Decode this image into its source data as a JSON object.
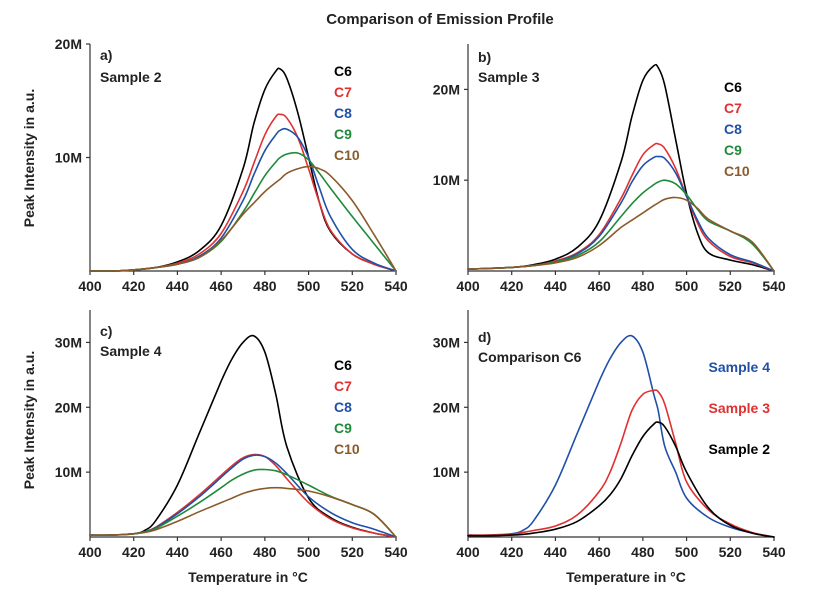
{
  "figure_title": "Comparison of Emission Profile",
  "chart_data": [
    {
      "type": "line",
      "panel": "a)",
      "subtitle": "Sample 2",
      "xlabel": "",
      "ylabel": "Peak Intensity in a.u.",
      "xlim": [
        400,
        540
      ],
      "ylim": [
        0,
        20000000
      ],
      "xticks": [
        "400",
        "420",
        "440",
        "460",
        "480",
        "500",
        "520",
        "540"
      ],
      "yticks": [
        {
          "value": 10000000,
          "label": "10M"
        },
        {
          "value": 20000000,
          "label": "20M"
        }
      ],
      "x": [
        400,
        410,
        420,
        430,
        440,
        450,
        460,
        470,
        475,
        480,
        485,
        487,
        490,
        495,
        500,
        505,
        510,
        520,
        530,
        540
      ],
      "series": [
        {
          "name": "C6",
          "color": "#000000",
          "values": [
            0,
            0,
            0.1,
            0.3,
            0.8,
            1.8,
            4,
            9,
            13,
            16,
            17.6,
            17.8,
            17,
            14,
            10,
            6,
            3.5,
            1.5,
            0.6,
            0
          ]
        },
        {
          "name": "C7",
          "color": "#e03030",
          "values": [
            0,
            0,
            0.1,
            0.3,
            0.7,
            1.5,
            3.3,
            7,
            9.5,
            12,
            13.6,
            13.8,
            13.5,
            11.8,
            9,
            6,
            3.6,
            1.5,
            0.6,
            0
          ]
        },
        {
          "name": "C8",
          "color": "#2050a8",
          "values": [
            0,
            0,
            0.1,
            0.3,
            0.6,
            1.3,
            2.9,
            6.2,
            8.5,
            10.6,
            12,
            12.4,
            12.5,
            11.8,
            10,
            7.3,
            4.8,
            1.9,
            0.7,
            0
          ]
        },
        {
          "name": "C9",
          "color": "#1f8a3a",
          "values": [
            0,
            0,
            0.1,
            0.3,
            0.6,
            1.2,
            2.6,
            5.2,
            6.8,
            8.4,
            9.6,
            10,
            10.3,
            10.4,
            9.8,
            8.6,
            7.3,
            4.8,
            2.4,
            0
          ]
        },
        {
          "name": "C10",
          "color": "#8b5a2b",
          "values": [
            0,
            0,
            0.1,
            0.3,
            0.6,
            1.2,
            2.7,
            5,
            6,
            7,
            7.8,
            8.1,
            8.6,
            9,
            9.2,
            9,
            8.4,
            6.2,
            3.2,
            0
          ]
        }
      ],
      "scale": 1000000
    },
    {
      "type": "line",
      "panel": "b)",
      "subtitle": "Sample 3",
      "xlabel": "",
      "ylabel": "",
      "xlim": [
        400,
        540
      ],
      "ylim": [
        0,
        25000000
      ],
      "xticks": [
        "400",
        "420",
        "440",
        "460",
        "480",
        "500",
        "520",
        "540"
      ],
      "yticks": [
        {
          "value": 10000000,
          "label": "10M"
        },
        {
          "value": 20000000,
          "label": "20M"
        }
      ],
      "x": [
        400,
        410,
        420,
        430,
        440,
        450,
        460,
        470,
        475,
        480,
        485,
        487,
        490,
        495,
        500,
        505,
        510,
        520,
        530,
        540
      ],
      "series": [
        {
          "name": "C6",
          "color": "#000000",
          "values": [
            0.2,
            0.3,
            0.4,
            0.7,
            1.3,
            2.6,
            5.5,
            12,
            17,
            21,
            22.6,
            22.4,
            20.5,
            14.5,
            8.5,
            4.2,
            2,
            1.2,
            0.7,
            0
          ]
        },
        {
          "name": "C7",
          "color": "#e03030",
          "values": [
            0.2,
            0.3,
            0.4,
            0.6,
            1.1,
            2,
            4,
            8,
            10.5,
            12.8,
            13.9,
            14,
            13.5,
            11.3,
            8.2,
            5.3,
            3.3,
            1.6,
            0.9,
            0
          ]
        },
        {
          "name": "C8",
          "color": "#2050a8",
          "values": [
            0.2,
            0.3,
            0.4,
            0.6,
            1,
            1.9,
            3.8,
            7.5,
            9.8,
            11.6,
            12.5,
            12.6,
            12.4,
            10.8,
            8.2,
            5.6,
            3.6,
            1.8,
            1,
            0
          ]
        },
        {
          "name": "C9",
          "color": "#1f8a3a",
          "values": [
            0.2,
            0.3,
            0.4,
            0.6,
            1,
            1.7,
            3.2,
            6,
            7.4,
            8.6,
            9.5,
            9.8,
            10,
            9.6,
            8.4,
            6.8,
            5.5,
            4.4,
            3,
            0
          ]
        },
        {
          "name": "C10",
          "color": "#8b5a2b",
          "values": [
            0.2,
            0.3,
            0.4,
            0.6,
            0.9,
            1.5,
            2.8,
            4.8,
            5.6,
            6.4,
            7.2,
            7.5,
            7.9,
            8.1,
            7.8,
            6.9,
            5.7,
            4.4,
            3.2,
            0
          ]
        }
      ],
      "scale": 1000000
    },
    {
      "type": "line",
      "panel": "c)",
      "subtitle": "Sample 4",
      "xlabel": "Temperature in °C",
      "ylabel": "Peak Intensity in a.u.",
      "xlim": [
        400,
        540
      ],
      "ylim": [
        0,
        35000000
      ],
      "xticks": [
        "400",
        "420",
        "440",
        "460",
        "480",
        "500",
        "520",
        "540"
      ],
      "yticks": [
        {
          "value": 10000000,
          "label": "10M"
        },
        {
          "value": 20000000,
          "label": "20M"
        },
        {
          "value": 30000000,
          "label": "30M"
        }
      ],
      "x": [
        400,
        410,
        420,
        425,
        430,
        440,
        450,
        460,
        465,
        470,
        475,
        480,
        485,
        490,
        500,
        510,
        520,
        530,
        540
      ],
      "series": [
        {
          "name": "C6",
          "color": "#000000",
          "values": [
            0.3,
            0.3,
            0.5,
            1,
            2.5,
            8,
            16,
            24,
            27.5,
            30,
            31,
            28.5,
            22,
            14,
            6,
            3,
            1.5,
            0.6,
            0
          ]
        },
        {
          "name": "C7",
          "color": "#e03030",
          "values": [
            0.3,
            0.3,
            0.5,
            0.8,
            1.5,
            3.8,
            6.5,
            9.5,
            11,
            12.2,
            12.7,
            12.4,
            11,
            9,
            5.3,
            2.8,
            1.4,
            0.6,
            0
          ]
        },
        {
          "name": "C8",
          "color": "#2050a8",
          "values": [
            0.3,
            0.3,
            0.5,
            0.8,
            1.4,
            3.6,
            6.2,
            9.2,
            10.7,
            12,
            12.6,
            12.4,
            11.4,
            9.8,
            6.2,
            3.8,
            2.2,
            1.2,
            0
          ]
        },
        {
          "name": "C9",
          "color": "#1f8a3a",
          "values": [
            0.3,
            0.3,
            0.5,
            0.8,
            1.3,
            3.2,
            5.3,
            7.6,
            8.8,
            9.7,
            10.3,
            10.4,
            10.2,
            9.6,
            8,
            6.3,
            5,
            3.5,
            0
          ]
        },
        {
          "name": "C10",
          "color": "#8b5a2b",
          "values": [
            0.3,
            0.3,
            0.5,
            0.7,
            1.1,
            2.4,
            3.9,
            5.3,
            6,
            6.7,
            7.2,
            7.5,
            7.6,
            7.5,
            7.1,
            6.2,
            5,
            3.5,
            0
          ]
        }
      ],
      "scale": 1000000
    },
    {
      "type": "line",
      "panel": "d)",
      "subtitle": "Comparison C6",
      "xlabel": "Temperature in °C",
      "ylabel": "",
      "xlim": [
        400,
        540
      ],
      "ylim": [
        0,
        35000000
      ],
      "xticks": [
        "400",
        "420",
        "440",
        "460",
        "480",
        "500",
        "520",
        "540"
      ],
      "yticks": [
        {
          "value": 10000000,
          "label": "10M"
        },
        {
          "value": 20000000,
          "label": "20M"
        },
        {
          "value": 30000000,
          "label": "30M"
        }
      ],
      "x": [
        400,
        410,
        420,
        425,
        430,
        440,
        450,
        460,
        465,
        470,
        475,
        480,
        485,
        487,
        490,
        495,
        500,
        510,
        520,
        530,
        540
      ],
      "series": [
        {
          "name": "Sample 4",
          "color": "#2050a8",
          "values": [
            0.3,
            0.3,
            0.5,
            1,
            2.5,
            8,
            16,
            24,
            27.5,
            30,
            31,
            28.5,
            22,
            19.5,
            14,
            10,
            6,
            3,
            1.5,
            0.6,
            0
          ]
        },
        {
          "name": "Sample 3",
          "color": "#e03030",
          "values": [
            0.3,
            0.3,
            0.4,
            0.7,
            1,
            1.7,
            3.4,
            7,
            10,
            14.5,
            19.5,
            22,
            22.6,
            22.4,
            20.5,
            14.5,
            8.5,
            4.2,
            2,
            0.7,
            0
          ]
        },
        {
          "name": "Sample 2",
          "color": "#000000",
          "values": [
            0.2,
            0.2,
            0.3,
            0.4,
            0.6,
            1.2,
            2.4,
            4.8,
            6.5,
            9,
            12.5,
            15.5,
            17.4,
            17.7,
            17,
            14,
            10,
            4.5,
            1.8,
            0.6,
            0
          ]
        }
      ],
      "scale": 1000000
    }
  ]
}
